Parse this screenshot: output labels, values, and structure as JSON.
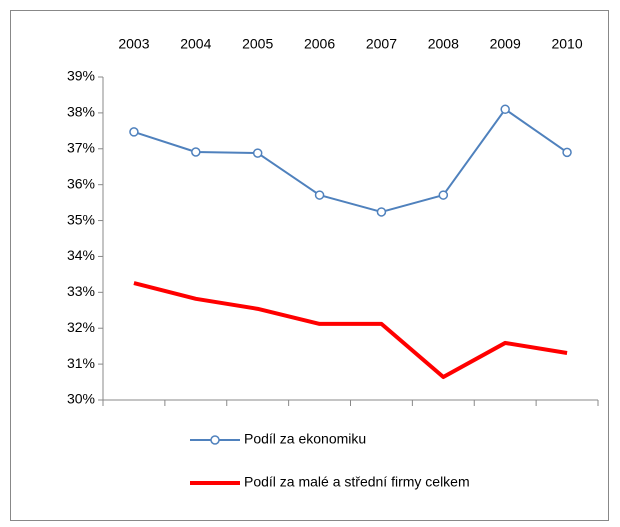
{
  "chart_data": {
    "type": "line",
    "categories": [
      "2003",
      "2004",
      "2005",
      "2006",
      "2007",
      "2008",
      "2009",
      "2010"
    ],
    "series": [
      {
        "name": "Podíl za ekonomiku",
        "color": "#4f81bd",
        "values": [
          37.47,
          36.91,
          36.88,
          35.71,
          35.24,
          35.71,
          38.1,
          36.9
        ]
      },
      {
        "name": "Podíl za malé a střední firmy celkem",
        "color": "#ff0000",
        "values": [
          33.26,
          32.82,
          32.54,
          32.12,
          32.12,
          30.64,
          31.59,
          31.31
        ]
      }
    ],
    "ylim": [
      30,
      39
    ],
    "yticks": [
      {
        "value": 30,
        "label": "30%"
      },
      {
        "value": 31,
        "label": "31%"
      },
      {
        "value": 32,
        "label": "32%"
      },
      {
        "value": 33,
        "label": "33%"
      },
      {
        "value": 34,
        "label": "34%"
      },
      {
        "value": 35,
        "label": "35%"
      },
      {
        "value": 36,
        "label": "36%"
      },
      {
        "value": 37,
        "label": "37%"
      },
      {
        "value": 38,
        "label": "38%"
      },
      {
        "value": 39,
        "label": "39%"
      }
    ],
    "grid": false,
    "legend": "bottom"
  }
}
